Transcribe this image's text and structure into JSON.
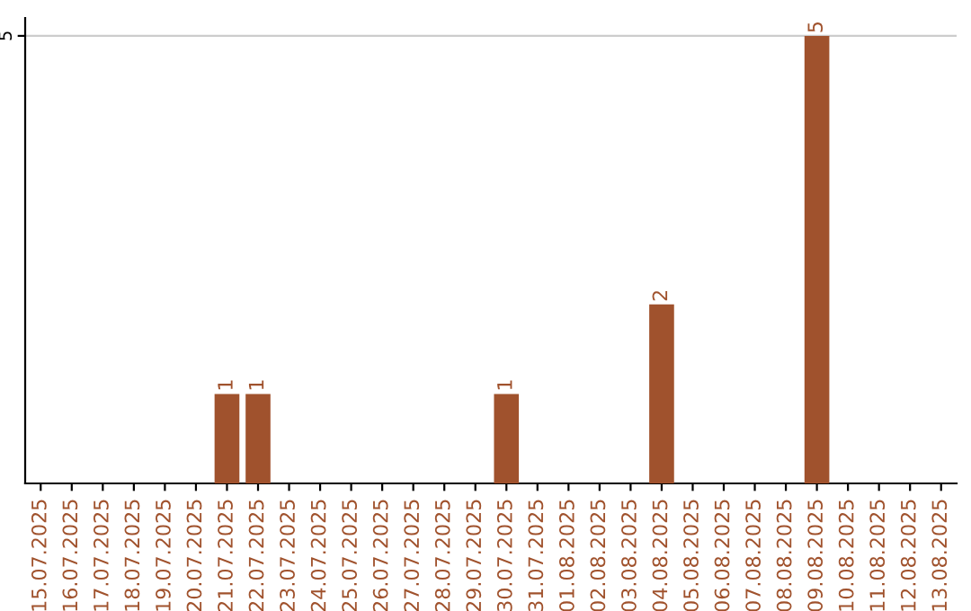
{
  "chart_data": {
    "type": "bar",
    "categories": [
      "15.07.2025",
      "16.07.2025",
      "17.07.2025",
      "18.07.2025",
      "19.07.2025",
      "20.07.2025",
      "21.07.2025",
      "22.07.2025",
      "23.07.2025",
      "24.07.2025",
      "25.07.2025",
      "26.07.2025",
      "27.07.2025",
      "28.07.2025",
      "29.07.2025",
      "30.07.2025",
      "31.07.2025",
      "01.08.2025",
      "02.08.2025",
      "03.08.2025",
      "04.08.2025",
      "05.08.2025",
      "06.08.2025",
      "07.08.2025",
      "08.08.2025",
      "09.08.2025",
      "10.08.2025",
      "11.08.2025",
      "12.08.2025",
      "13.08.2025"
    ],
    "values": [
      0,
      0,
      0,
      0,
      0,
      0,
      1,
      1,
      0,
      0,
      0,
      0,
      0,
      0,
      0,
      1,
      0,
      0,
      0,
      0,
      2,
      0,
      0,
      0,
      0,
      5,
      0,
      0,
      0,
      0
    ],
    "color": "#a0522d",
    "value_labels": [
      null,
      null,
      null,
      null,
      null,
      null,
      "1",
      "1",
      null,
      null,
      null,
      null,
      null,
      null,
      null,
      "1",
      null,
      null,
      null,
      null,
      "2",
      null,
      null,
      null,
      null,
      "5",
      null,
      null,
      null,
      null
    ],
    "ylim": [
      0,
      5.2
    ],
    "yticks": [
      5
    ],
    "grid": "y",
    "legend": false
  }
}
